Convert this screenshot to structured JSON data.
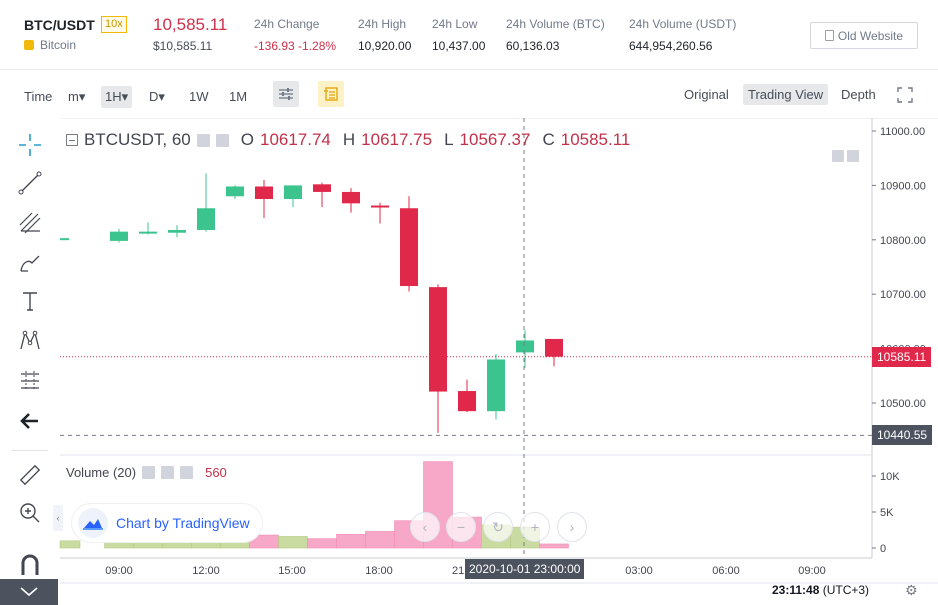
{
  "header": {
    "pair": "BTC/USDT",
    "leverage": "10x",
    "coin_name": "Bitcoin",
    "last_price": "10,585.11",
    "last_price_usd": "$10,585.11",
    "stats": [
      {
        "label": "24h Change",
        "value": "-136.93 -1.28%",
        "negative": true
      },
      {
        "label": "24h High",
        "value": "10,920.00",
        "negative": false
      },
      {
        "label": "24h Low",
        "value": "10,437.00",
        "negative": false
      },
      {
        "label": "24h Volume (BTC)",
        "value": "60,136.03",
        "negative": false
      },
      {
        "label": "24h Volume (USDT)",
        "value": "644,954,260.56",
        "negative": false
      }
    ],
    "old_website": "Old Website"
  },
  "toolbar": {
    "time_label": "Time",
    "intervals": [
      "m▾",
      "1H▾",
      "D▾",
      "1W",
      "1M"
    ],
    "active_interval": "1H▾",
    "views": [
      "Original",
      "Trading View",
      "Depth"
    ],
    "active_view": "Trading View"
  },
  "tools": [
    "crosshair-icon",
    "trend-line-icon",
    "fib-icon",
    "brush-icon",
    "text-icon",
    "pattern-icon",
    "measure-icon",
    "back-arrow-icon",
    "ruler-icon",
    "zoom-in-icon",
    "magnet-icon"
  ],
  "legend": {
    "symbol": "BTCUSDT, 60",
    "o_label": "O",
    "o": "10617.74",
    "h_label": "H",
    "h": "10617.75",
    "l_label": "L",
    "l": "10567.37",
    "c_label": "C",
    "c": "10585.11"
  },
  "volume_legend": {
    "label": "Volume (20)",
    "value": "560"
  },
  "tv_logo": "Chart by TradingView",
  "crosshair_timestamp": "2020-10-01 23:00:00",
  "current_price_tag": "10585.11",
  "crosshair_price_tag": "10440.55",
  "clock": {
    "time": "23:11:48",
    "tz": "(UTC+3)"
  },
  "colors": {
    "up": "#26a69a",
    "up_fill": "#3cc48f",
    "down": "#e0294a",
    "vol_up": "#c9dba0",
    "vol_down": "#f7a8c9",
    "accent": "#f0b90b"
  },
  "chart_data": {
    "type": "candlestick",
    "title": "BTCUSDT, 60",
    "price_axis": {
      "ticks": [
        10500,
        10600,
        10700,
        10800,
        10900,
        11000
      ],
      "tick_labels": [
        "10500.00",
        "10600.00",
        "10700.00",
        "10800.00",
        "10900.00",
        "11000.00"
      ],
      "range": [
        10430,
        11010
      ]
    },
    "volume_axis": {
      "ticks": [
        0,
        5000,
        10000
      ],
      "tick_labels": [
        "0",
        "5K",
        "10K"
      ],
      "range": [
        0,
        12000
      ]
    },
    "time_axis": {
      "tick_labels": [
        "09:00",
        "12:00",
        "15:00",
        "18:00",
        "21:00",
        "03:00",
        "06:00",
        "09:00"
      ]
    },
    "candles": [
      {
        "o": 10800,
        "h": 10805,
        "l": 10797,
        "c": 10803,
        "v": 1000
      },
      {
        "o": 10798,
        "h": 10820,
        "l": 10795,
        "c": 10815,
        "v": 1200
      },
      {
        "o": 10815,
        "h": 10832,
        "l": 10810,
        "c": 10815,
        "v": 900
      },
      {
        "o": 10813,
        "h": 10827,
        "l": 10805,
        "c": 10818,
        "v": 1100
      },
      {
        "o": 10818,
        "h": 10922,
        "l": 10815,
        "c": 10858,
        "v": 3200
      },
      {
        "o": 10880,
        "h": 10900,
        "l": 10875,
        "c": 10898,
        "v": 4000
      },
      {
        "o": 10898,
        "h": 10910,
        "l": 10840,
        "c": 10875,
        "v": 1800
      },
      {
        "o": 10875,
        "h": 10900,
        "l": 10860,
        "c": 10900,
        "v": 1600
      },
      {
        "o": 10902,
        "h": 10905,
        "l": 10860,
        "c": 10888,
        "v": 1300
      },
      {
        "o": 10888,
        "h": 10895,
        "l": 10850,
        "c": 10867,
        "v": 1900
      },
      {
        "o": 10863,
        "h": 10868,
        "l": 10830,
        "c": 10860,
        "v": 2300
      },
      {
        "o": 10858,
        "h": 10880,
        "l": 10705,
        "c": 10715,
        "v": 3800
      },
      {
        "o": 10713,
        "h": 10718,
        "l": 10445,
        "c": 10521,
        "v": 12000
      },
      {
        "o": 10522,
        "h": 10543,
        "l": 10483,
        "c": 10485,
        "v": 4300
      },
      {
        "o": 10485,
        "h": 10590,
        "l": 10470,
        "c": 10580,
        "v": 3200
      },
      {
        "o": 10593,
        "h": 10634,
        "l": 10565,
        "c": 10615,
        "v": 2900
      },
      {
        "o": 10617.74,
        "h": 10617.75,
        "l": 10567.37,
        "c": 10585.11,
        "v": 560
      }
    ]
  }
}
